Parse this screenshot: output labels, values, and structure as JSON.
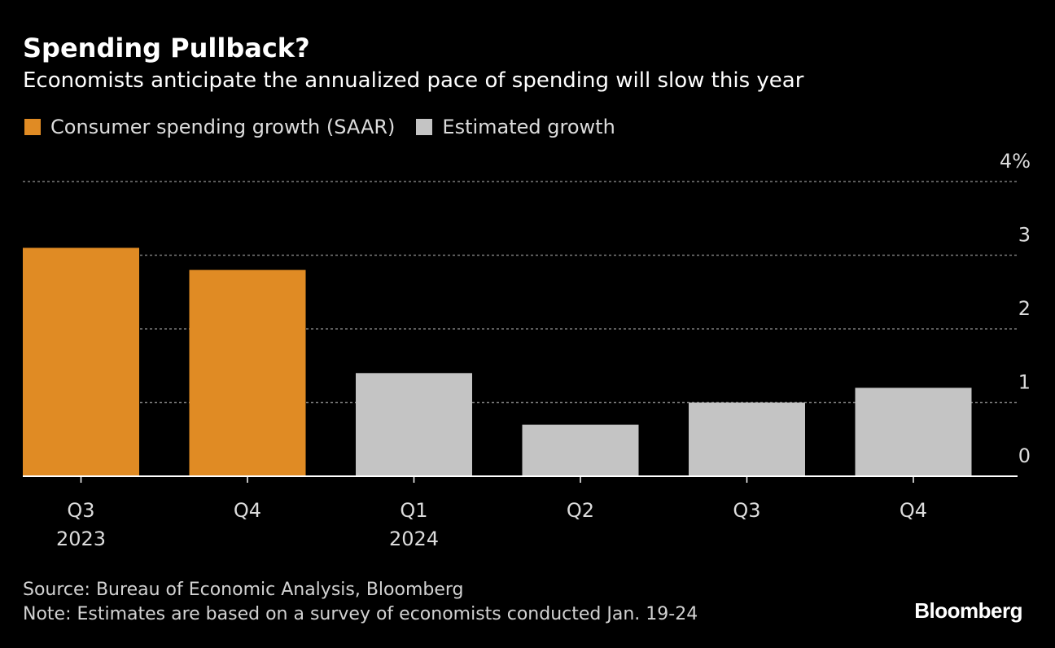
{
  "title": "Spending Pullback?",
  "subtitle": "Economists anticipate the annualized pace of spending will slow this year",
  "legend": [
    {
      "label": "Consumer spending growth (SAAR)",
      "color": "#e08b24"
    },
    {
      "label": "Estimated growth",
      "color": "#c4c4c4"
    }
  ],
  "colors": {
    "background": "#000000",
    "actual": "#e08b24",
    "estimate": "#c4c4c4",
    "grid": "#7a7a7a",
    "text": "#ffffff"
  },
  "chart_data": {
    "type": "bar",
    "categories": [
      "Q3 2023",
      "Q4 2023",
      "Q1 2024",
      "Q2 2024",
      "Q3 2024",
      "Q4 2024"
    ],
    "tick_labels": [
      {
        "line1": "Q3",
        "line2": "2023"
      },
      {
        "line1": "Q4",
        "line2": ""
      },
      {
        "line1": "Q1",
        "line2": "2024"
      },
      {
        "line1": "Q2",
        "line2": ""
      },
      {
        "line1": "Q3",
        "line2": ""
      },
      {
        "line1": "Q4",
        "line2": ""
      }
    ],
    "series": [
      {
        "name": "Consumer spending growth (SAAR)",
        "values": [
          3.1,
          2.8,
          null,
          null,
          null,
          null
        ]
      },
      {
        "name": "Estimated growth",
        "values": [
          null,
          null,
          1.4,
          0.7,
          1.0,
          1.2
        ]
      }
    ],
    "ylim": [
      0,
      4
    ],
    "yticks": [
      0,
      1,
      2,
      3,
      4
    ],
    "ytick_labels": [
      "0",
      "1",
      "2",
      "3",
      "4%"
    ],
    "y_axis_side": "right",
    "grid": true,
    "legend_position": "top-left"
  },
  "footer": {
    "source": "Source: Bureau of Economic Analysis, Bloomberg",
    "note": "Note: Estimates are based on a survey of economists conducted Jan. 19-24"
  },
  "brand": "Bloomberg"
}
